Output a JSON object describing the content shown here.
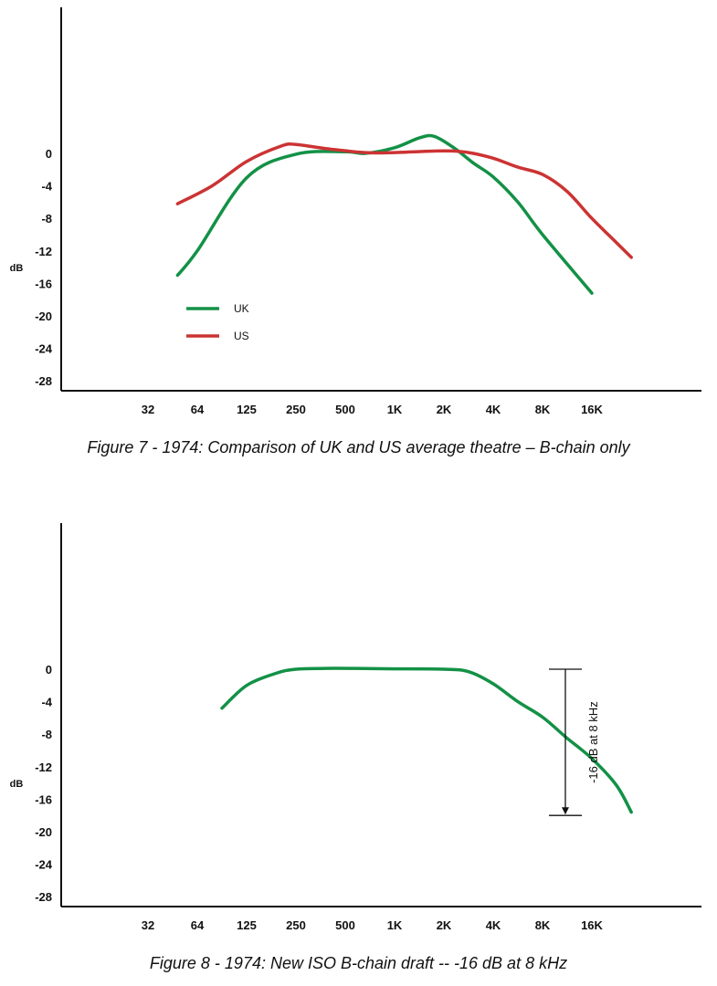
{
  "chart_data": [
    {
      "type": "line",
      "title": "Figure 7  -  1974: Comparison of UK and US average theatre – B-chain only",
      "ylabel": "dB",
      "xlabel": "",
      "y_ticks": [
        "0",
        "-4",
        "-8",
        "-12",
        "-16",
        "-20",
        "-24",
        "-28"
      ],
      "ylim": [
        -29,
        18
      ],
      "categories": [
        "32",
        "64",
        "125",
        "250",
        "500",
        "1K",
        "2K",
        "4K",
        "8K",
        "16K"
      ],
      "legend": {
        "position": "lower-left-inside"
      },
      "series": [
        {
          "name": "UK",
          "color": "#139146",
          "points": [
            [
              1.6,
              -15
            ],
            [
              2,
              -12
            ],
            [
              3,
              -3
            ],
            [
              4,
              -0.1
            ],
            [
              5,
              0.2
            ],
            [
              5.4,
              0
            ],
            [
              6,
              0.7
            ],
            [
              6.5,
              1.9
            ],
            [
              6.8,
              2.1
            ],
            [
              7.2,
              0.7
            ],
            [
              7.6,
              -1.2
            ],
            [
              8,
              -2.9
            ],
            [
              8.5,
              -6
            ],
            [
              9,
              -10
            ],
            [
              10,
              -17.2
            ]
          ],
          "color_name": "green"
        },
        {
          "name": "US",
          "color": "#cc3333",
          "points": [
            [
              1.6,
              -6.2
            ],
            [
              2.3,
              -4
            ],
            [
              3,
              -1
            ],
            [
              3.7,
              0.9
            ],
            [
              4,
              1.1
            ],
            [
              4.6,
              0.6
            ],
            [
              5.4,
              0.1
            ],
            [
              6,
              0.1
            ],
            [
              7,
              0.3
            ],
            [
              7.5,
              0.1
            ],
            [
              8,
              -0.6
            ],
            [
              8.5,
              -1.7
            ],
            [
              9,
              -2.6
            ],
            [
              9.5,
              -4.7
            ],
            [
              10,
              -8
            ],
            [
              10.5,
              -11
            ],
            [
              10.8,
              -12.8
            ]
          ],
          "color_name": "red"
        }
      ]
    },
    {
      "type": "line",
      "title": "Figure 8  -  1974: New ISO B-chain draft -- -16 dB at 8 kHz",
      "ylabel": "dB",
      "xlabel": "",
      "y_ticks": [
        "0",
        "-4",
        "-8",
        "-12",
        "-16",
        "-20",
        "-24",
        "-28"
      ],
      "ylim": [
        -29,
        18
      ],
      "categories": [
        "32",
        "64",
        "125",
        "250",
        "500",
        "1K",
        "2K",
        "4K",
        "8K",
        "16K"
      ],
      "series": [
        {
          "name": "ISO B-chain draft",
          "color": "#139146",
          "points": [
            [
              2.5,
              -4.8
            ],
            [
              3,
              -2
            ],
            [
              3.6,
              -0.5
            ],
            [
              4,
              0
            ],
            [
              4.6,
              0.1
            ],
            [
              5.2,
              0.1
            ],
            [
              6,
              0.05
            ],
            [
              7,
              0
            ],
            [
              7.5,
              -0.3
            ],
            [
              8,
              -1.8
            ],
            [
              8.5,
              -4
            ],
            [
              9,
              -5.9
            ],
            [
              9.5,
              -8.5
            ],
            [
              10,
              -11
            ],
            [
              10.5,
              -14.3
            ],
            [
              10.8,
              -17.6
            ]
          ],
          "color_name": "green"
        }
      ],
      "annotation": {
        "text": "-16 dB at 8 kHz",
        "from_db": 0,
        "to_db": -18,
        "at_x": 10.6
      }
    }
  ],
  "captions": [
    "Figure 7  -  1974: Comparison of UK and US average theatre – B-chain only",
    "Figure 8  -  1974: New ISO B-chain draft -- -16 dB at 8 kHz"
  ]
}
